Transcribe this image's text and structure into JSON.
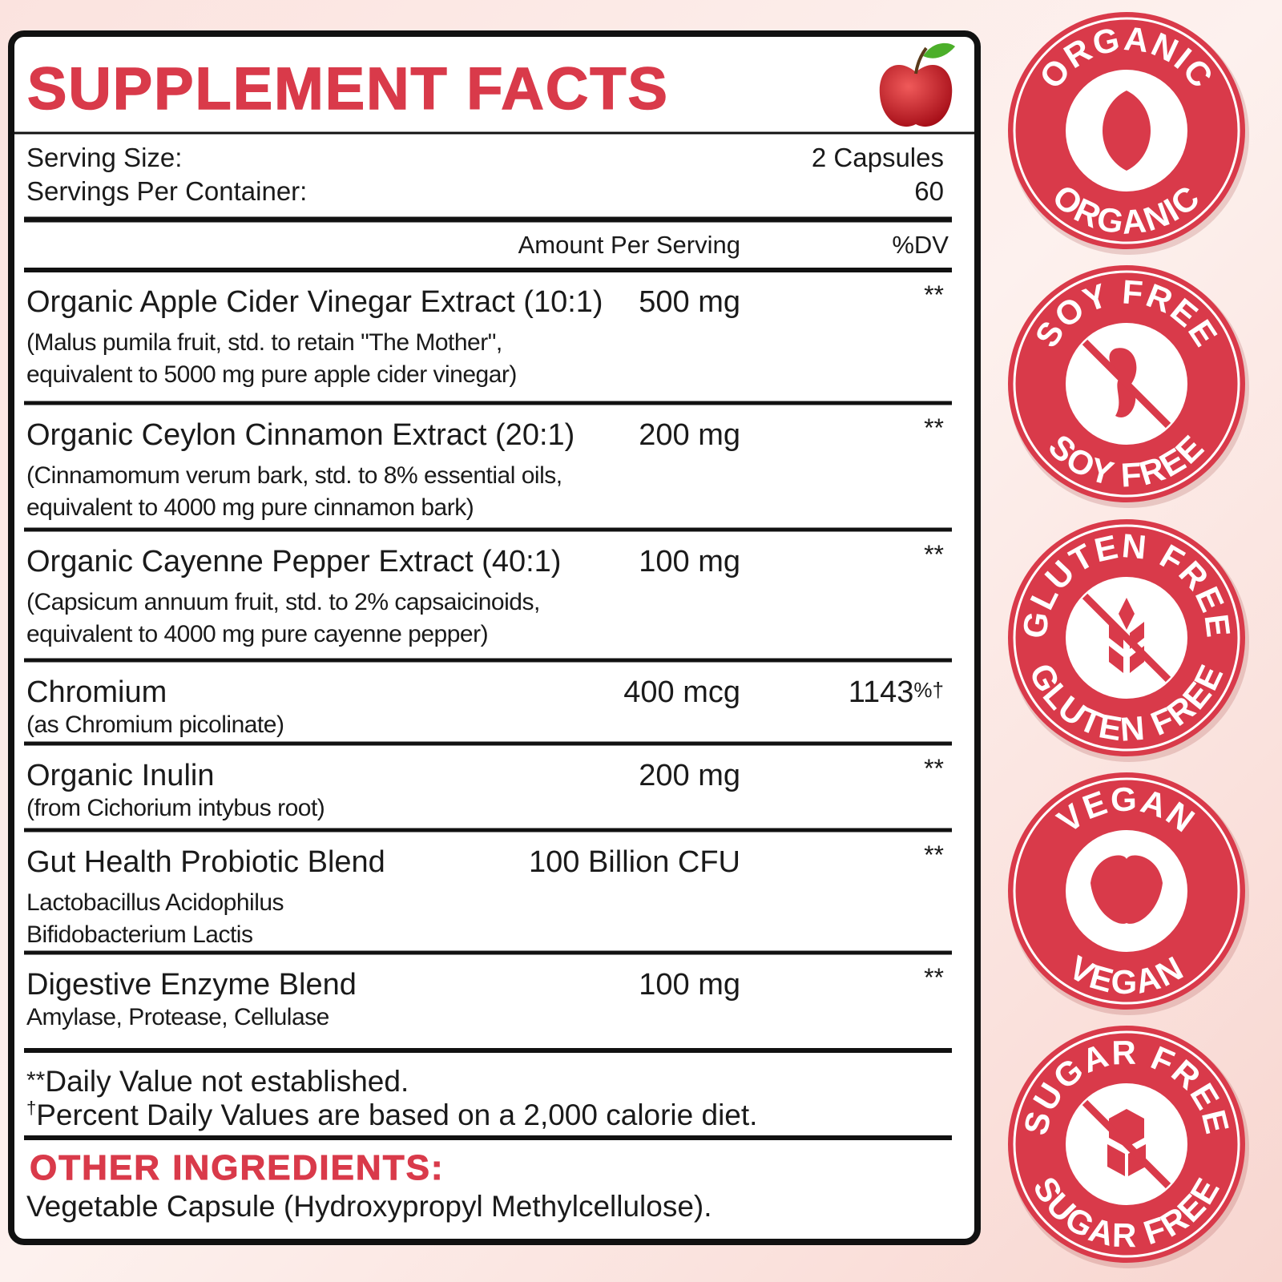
{
  "header": {
    "title": "SUPPLEMENT FACTS"
  },
  "serving": {
    "size_label": "Serving Size:",
    "size_value": "2 Capsules",
    "per_container_label": "Servings Per Container:",
    "per_container_value": "60"
  },
  "columns": {
    "amount": "Amount Per Serving",
    "dv": "%DV"
  },
  "ingredients": [
    {
      "name": "Organic Apple Cider Vinegar Extract (10:1)",
      "amount": "500 mg",
      "dv": "**",
      "details": [
        "(Malus pumila fruit, std. to retain \"The Mother\",",
        "equivalent to 5000 mg pure apple cider vinegar)"
      ]
    },
    {
      "name": "Organic Ceylon Cinnamon Extract (20:1)",
      "amount": "200 mg",
      "dv": "**",
      "details": [
        "(Cinnamomum verum bark, std. to 8% essential oils,",
        "equivalent to 4000 mg pure cinnamon bark)"
      ]
    },
    {
      "name": "Organic Cayenne Pepper Extract (40:1)",
      "amount": "100 mg",
      "dv": "**",
      "details": [
        "(Capsicum annuum fruit, std. to 2% capsaicinoids,",
        "equivalent to 4000 mg pure cayenne pepper)"
      ]
    },
    {
      "name": "Chromium",
      "amount": "400 mcg",
      "dv": "1143",
      "dv_suffix": "%†",
      "details": [
        "(as Chromium picolinate)"
      ]
    },
    {
      "name": "Organic Inulin",
      "amount": "200 mg",
      "dv": "**",
      "details": [
        "(from Cichorium intybus root)"
      ]
    },
    {
      "name": "Gut Health Probiotic Blend",
      "amount": "100 Billion CFU",
      "dv": "**",
      "details": [
        "Lactobacillus Acidophilus",
        "Bifidobacterium Lactis"
      ]
    },
    {
      "name": "Digestive Enzyme Blend",
      "amount": "100 mg",
      "dv": "**",
      "details": [
        "Amylase, Protease, Cellulase"
      ]
    }
  ],
  "footnotes": [
    {
      "mark": "**",
      "text": "Daily Value not established."
    },
    {
      "mark": "†",
      "text": "Percent Daily Values are based on a 2,000 calorie diet."
    }
  ],
  "other_ingredients": {
    "title": "OTHER INGREDIENTS:",
    "text": "Vegetable Capsule (Hydroxypropyl Methylcellulose)."
  },
  "badges": [
    {
      "top": "ORGANIC",
      "bottom": "ORGANIC"
    },
    {
      "top": "SOY FREE",
      "bottom": "SOY FREE"
    },
    {
      "top": "GLUTEN FREE",
      "bottom": "GLUTEN FREE"
    },
    {
      "top": "VEGAN",
      "bottom": "VEGAN"
    },
    {
      "top": "SUGAR FREE",
      "bottom": "SUGAR FREE"
    }
  ]
}
